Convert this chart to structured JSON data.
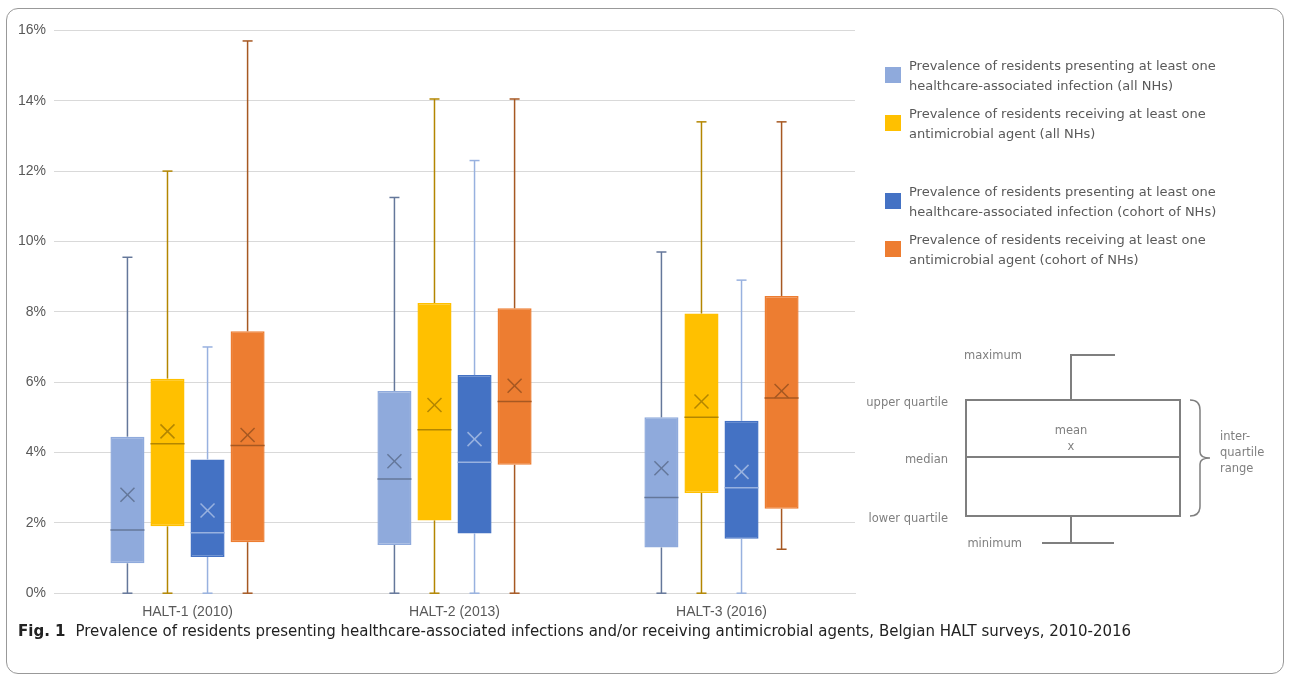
{
  "chart_data": {
    "type": "box",
    "categories": [
      "HALT-1 (2010)",
      "HALT-2 (2013)",
      "HALT-3 (2016)"
    ],
    "series": [
      {
        "name": "Prevalence of residents presenting at least one healthcare-associated infection (all NHs)",
        "color": "#8faadc",
        "boxes": [
          {
            "low": 0,
            "q1": 0.85,
            "median": 1.8,
            "q3": 4.45,
            "high": 9.55,
            "mean": 2.8
          },
          {
            "low": 0,
            "q1": 1.37,
            "median": 3.25,
            "q3": 5.75,
            "high": 11.25,
            "mean": 3.75
          },
          {
            "low": 0,
            "q1": 1.3,
            "median": 2.72,
            "q3": 5.0,
            "high": 9.7,
            "mean": 3.55
          }
        ]
      },
      {
        "name": "Prevalence of residents receiving at least one antimicrobial agent (all NHs)",
        "color": "#ffc000",
        "boxes": [
          {
            "low": 0,
            "q1": 1.9,
            "median": 4.25,
            "q3": 6.1,
            "high": 12.0,
            "mean": 4.6
          },
          {
            "low": 0,
            "q1": 2.07,
            "median": 4.65,
            "q3": 8.25,
            "high": 14.05,
            "mean": 5.35
          },
          {
            "low": 0,
            "q1": 2.85,
            "median": 5.0,
            "q3": 7.95,
            "high": 13.4,
            "mean": 5.45
          }
        ]
      },
      {
        "name": "Prevalence of residents presenting at least one healthcare-associated infection (cohort of NHs)",
        "color": "#4472c4",
        "boxes": [
          {
            "low": 0,
            "q1": 1.03,
            "median": 1.72,
            "q3": 3.8,
            "high": 7.0,
            "mean": 2.35
          },
          {
            "low": 0,
            "q1": 1.7,
            "median": 3.72,
            "q3": 6.2,
            "high": 12.3,
            "mean": 4.38
          },
          {
            "low": 0,
            "q1": 1.55,
            "median": 3.0,
            "q3": 4.9,
            "high": 8.9,
            "mean": 3.45
          }
        ]
      },
      {
        "name": "Prevalence of residents receiving at least one antimicrobial agent (cohort of NHs)",
        "color": "#ed7d31",
        "boxes": [
          {
            "low": 0,
            "q1": 1.45,
            "median": 4.2,
            "q3": 7.45,
            "high": 15.7,
            "mean": 4.5
          },
          {
            "low": 0,
            "q1": 3.65,
            "median": 5.45,
            "q3": 8.1,
            "high": 14.05,
            "mean": 5.9
          },
          {
            "low": 1.25,
            "q1": 2.4,
            "median": 5.55,
            "q3": 8.45,
            "high": 13.4,
            "mean": 5.75
          }
        ]
      }
    ],
    "ylim": [
      0,
      16
    ],
    "yticks": [
      {
        "value": 0,
        "label": "0%"
      },
      {
        "value": 2,
        "label": "2%"
      },
      {
        "value": 4,
        "label": "4%"
      },
      {
        "value": 6,
        "label": "6%"
      },
      {
        "value": 8,
        "label": "8%"
      },
      {
        "value": 10,
        "label": "10%"
      },
      {
        "value": 12,
        "label": "12%"
      },
      {
        "value": 14,
        "label": "14%"
      },
      {
        "value": 16,
        "label": "16%"
      }
    ],
    "grid": "y",
    "legend": "right",
    "annotations": [
      "Fig. 1",
      "Prevalence of residents presenting healthcare-associated infections and/or receiving antimicrobial agents, Belgian HALT surveys, 2010-2016",
      "maximum",
      "upper quartile",
      "mean",
      "x",
      "median",
      "lower quartile",
      "minimum",
      "inter-quartile range"
    ]
  }
}
